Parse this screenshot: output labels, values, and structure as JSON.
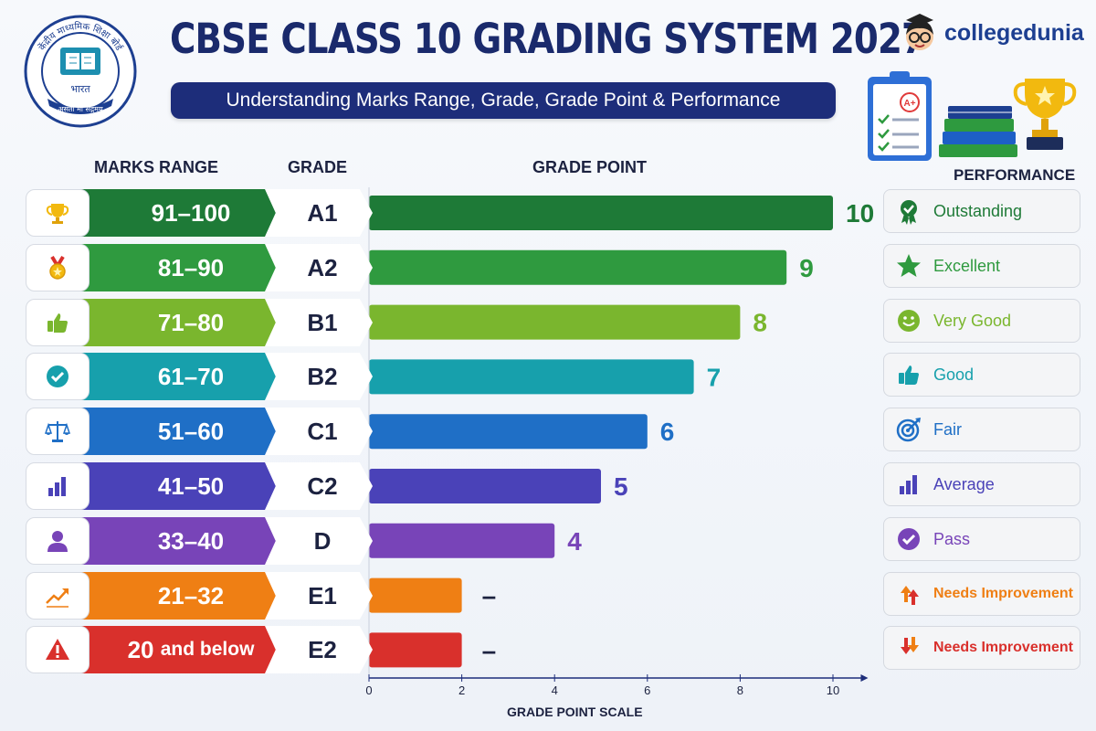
{
  "header": {
    "title": "CBSE CLASS 10 GRADING SYSTEM 2027",
    "subtitle": "Understanding Marks Range, Grade, Grade Point & Performance",
    "brand": "collegedunia",
    "logo_text_top": "केंद्रीय माध्यमिक शिक्षा बोर्ड",
    "logo_text_mid": "भारत",
    "logo_text_bottom": "असतो मा सद्गमय",
    "badge_text": "A+"
  },
  "columns": {
    "marks": "MARKS RANGE",
    "grade": "GRADE",
    "grade_point": "GRADE POINT",
    "performance": "PERFORMANCE"
  },
  "rows": [
    {
      "range": "91–100",
      "grade": "A1",
      "point_label": "10",
      "performance": "Outstanding",
      "color": "#1e7a37",
      "icon": "trophy-icon",
      "perf_icon": "rosette-icon"
    },
    {
      "range": "81–90",
      "grade": "A2",
      "point_label": "9",
      "performance": "Excellent",
      "color": "#2f9a3f",
      "icon": "medal-icon",
      "perf_icon": "star-icon"
    },
    {
      "range": "71–80",
      "grade": "B1",
      "point_label": "8",
      "performance": "Very Good",
      "color": "#7ab62e",
      "icon": "thumbs-up-icon",
      "perf_icon": "smiley-icon"
    },
    {
      "range": "61–70",
      "grade": "B2",
      "point_label": "7",
      "performance": "Good",
      "color": "#17a0ac",
      "icon": "check-circle-icon",
      "perf_icon": "thumbs-up-icon"
    },
    {
      "range": "51–60",
      "grade": "C1",
      "point_label": "6",
      "performance": "Fair",
      "color": "#1f6fc6",
      "icon": "balance-scale-icon",
      "perf_icon": "target-icon"
    },
    {
      "range": "41–50",
      "grade": "C2",
      "point_label": "5",
      "performance": "Average",
      "color": "#4a42b8",
      "icon": "bar-chart-icon",
      "perf_icon": "bar-chart-icon"
    },
    {
      "range": "33–40",
      "grade": "D",
      "point_label": "4",
      "performance": "Pass",
      "color": "#7844b8",
      "icon": "user-icon",
      "perf_icon": "check-circle-icon"
    },
    {
      "range": "21–32",
      "grade": "E1",
      "point_label": "–",
      "performance": "Needs Improvement",
      "color": "#ef7f14",
      "icon": "trend-up-icon",
      "perf_icon": "arrows-up-icon"
    },
    {
      "range_main": "20",
      "range_rest": "and below",
      "grade": "E2",
      "point_label": "–",
      "performance": "Needs Improvement",
      "color": "#d9302c",
      "icon": "warning-icon",
      "perf_icon": "arrows-down-icon"
    }
  ],
  "chart_data": {
    "type": "bar",
    "orientation": "horizontal",
    "categories": [
      "A1",
      "A2",
      "B1",
      "B2",
      "C1",
      "C2",
      "D",
      "E1",
      "E2"
    ],
    "values": [
      10,
      9,
      8,
      7,
      6,
      5,
      4,
      2,
      2
    ],
    "value_labels": [
      "10",
      "9",
      "8",
      "7",
      "6",
      "5",
      "4",
      "–",
      "–"
    ],
    "xlabel": "GRADE POINT SCALE",
    "xlim": [
      0,
      10
    ],
    "xticks": [
      "0",
      "2",
      "4",
      "6",
      "8",
      "10"
    ],
    "grid": false
  }
}
